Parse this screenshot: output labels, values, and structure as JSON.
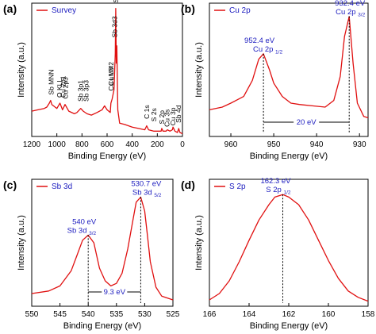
{
  "colors": {
    "line": "#e01010",
    "label": "#2020c0",
    "axis": "#000000",
    "dash": "#000000"
  },
  "chart_data": [
    {
      "panel": "(a)",
      "type": "line",
      "legend": "Survey",
      "xlabel": "Binding Energy (eV)",
      "ylabel": "Intensity (a.u.)",
      "xlim": [
        1200,
        0
      ],
      "xticks": [
        1200,
        1000,
        800,
        600,
        400,
        200,
        0
      ],
      "x": [
        1200,
        1150,
        1100,
        1080,
        1060,
        1050,
        1040,
        1000,
        975,
        955,
        935,
        905,
        860,
        840,
        810,
        790,
        760,
        725,
        680,
        640,
        620,
        600,
        575,
        570,
        560,
        545,
        535,
        531,
        527,
        522,
        515,
        500,
        460,
        400,
        350,
        300,
        285,
        270,
        230,
        200,
        170,
        165,
        155,
        130,
        120,
        100,
        80,
        75,
        60,
        40,
        30,
        20,
        0
      ],
      "y": [
        0.19,
        0.2,
        0.21,
        0.22,
        0.25,
        0.27,
        0.24,
        0.21,
        0.25,
        0.2,
        0.24,
        0.19,
        0.17,
        0.18,
        0.21,
        0.19,
        0.17,
        0.16,
        0.18,
        0.2,
        0.23,
        0.2,
        0.18,
        0.25,
        0.28,
        0.35,
        0.62,
        0.96,
        0.55,
        0.68,
        0.2,
        0.1,
        0.09,
        0.07,
        0.06,
        0.05,
        0.08,
        0.05,
        0.04,
        0.04,
        0.04,
        0.06,
        0.04,
        0.04,
        0.05,
        0.04,
        0.05,
        0.07,
        0.04,
        0.03,
        0.06,
        0.03,
        0.02
      ],
      "annotations": [
        {
          "text": "Sb MNN",
          "x": 1045,
          "y": 0.3
        },
        {
          "text": "O KLL",
          "x": 980,
          "y": 0.28
        },
        {
          "text": "Cu 2p1",
          "x": 952,
          "y": 0.28
        },
        {
          "text": "Cu 2p3",
          "x": 932,
          "y": 0.27
        },
        {
          "text": "Sb 3p1",
          "x": 812,
          "y": 0.25
        },
        {
          "text": "Sb 3p3",
          "x": 766,
          "y": 0.25
        },
        {
          "text": "Cu LM3",
          "x": 570,
          "y": 0.33
        },
        {
          "text": "Cu LM2",
          "x": 570,
          "y": 0.37
        },
        {
          "text": "Sb 3d3",
          "x": 540,
          "y": 0.73
        },
        {
          "text": "Sb 3d5",
          "x": 531,
          "y": 0.99
        },
        {
          "text": "C 1s",
          "x": 285,
          "y": 0.12
        },
        {
          "text": "S 2s",
          "x": 228,
          "y": 0.1
        },
        {
          "text": "S 2p",
          "x": 163,
          "y": 0.08
        },
        {
          "text": "Cu 3s",
          "x": 122,
          "y": 0.06
        },
        {
          "text": "Cu 3p",
          "x": 77,
          "y": 0.07
        },
        {
          "text": "Sb 4d",
          "x": 33,
          "y": 0.09
        }
      ]
    },
    {
      "panel": "(b)",
      "type": "line",
      "legend": "Cu 2p",
      "xlabel": "Binding Energy (eV)",
      "ylabel": "Intensity (a.u.)",
      "xlim": [
        965,
        928
      ],
      "xticks": [
        960,
        950,
        940,
        930
      ],
      "x": [
        965,
        962,
        960,
        957,
        955,
        953.5,
        952.4,
        951,
        950,
        948,
        946,
        944,
        941,
        938,
        936,
        934.5,
        933.5,
        932.4,
        931.5,
        930.5,
        929,
        928
      ],
      "y": [
        0.2,
        0.22,
        0.25,
        0.3,
        0.42,
        0.58,
        0.62,
        0.5,
        0.4,
        0.3,
        0.25,
        0.24,
        0.23,
        0.22,
        0.27,
        0.45,
        0.75,
        0.9,
        0.55,
        0.25,
        0.15,
        0.14
      ],
      "peaks": [
        {
          "value": "952.4 eV",
          "name": "Cu 2p",
          "sub": "1/2",
          "x": 952.4,
          "y": 0.62
        },
        {
          "value": "932.4 eV",
          "name": "Cu 2p",
          "sub": "3/2",
          "x": 932.4,
          "y": 0.9
        }
      ],
      "splitting": "20 eV"
    },
    {
      "panel": "(c)",
      "type": "line",
      "legend": "Sb 3d",
      "xlabel": "Binding Energy (eV)",
      "ylabel": "Intensity (a.u.)",
      "xlim": [
        550,
        525
      ],
      "xticks": [
        550,
        545,
        540,
        535,
        530,
        525
      ],
      "x": [
        550,
        547,
        545,
        543,
        542,
        541,
        540,
        539,
        538,
        537,
        536,
        535,
        534,
        533,
        532,
        531.5,
        530.7,
        530,
        529.5,
        529,
        528,
        527,
        525
      ],
      "y": [
        0.1,
        0.12,
        0.16,
        0.28,
        0.4,
        0.52,
        0.56,
        0.5,
        0.3,
        0.2,
        0.16,
        0.18,
        0.26,
        0.45,
        0.7,
        0.82,
        0.86,
        0.75,
        0.55,
        0.35,
        0.15,
        0.08,
        0.05
      ],
      "peaks": [
        {
          "value": "540 eV",
          "name": "Sb 3d",
          "sub": "3/2",
          "x": 540,
          "y": 0.56
        },
        {
          "value": "530.7 eV",
          "name": "Sb 3d",
          "sub": "5/2",
          "x": 530.7,
          "y": 0.86
        }
      ],
      "splitting": "9.3 eV"
    },
    {
      "panel": "(d)",
      "type": "line",
      "legend": "S 2p",
      "xlabel": "Binding Energy (eV)",
      "ylabel": "Intensity (a.u.)",
      "xlim": [
        166,
        158
      ],
      "xticks": [
        166,
        164,
        162,
        160,
        158
      ],
      "x": [
        166,
        165.5,
        165,
        164.5,
        164,
        163.5,
        163,
        162.7,
        162.3,
        162,
        161.5,
        161,
        160.5,
        160,
        159.5,
        159,
        158.5,
        158
      ],
      "y": [
        0.05,
        0.1,
        0.2,
        0.35,
        0.52,
        0.68,
        0.8,
        0.86,
        0.88,
        0.86,
        0.8,
        0.68,
        0.52,
        0.36,
        0.22,
        0.12,
        0.07,
        0.04
      ],
      "peaks": [
        {
          "value": "162.3 eV",
          "name": "S 2p",
          "sub": "1/2",
          "x": 162.3,
          "y": 0.88
        }
      ]
    }
  ]
}
